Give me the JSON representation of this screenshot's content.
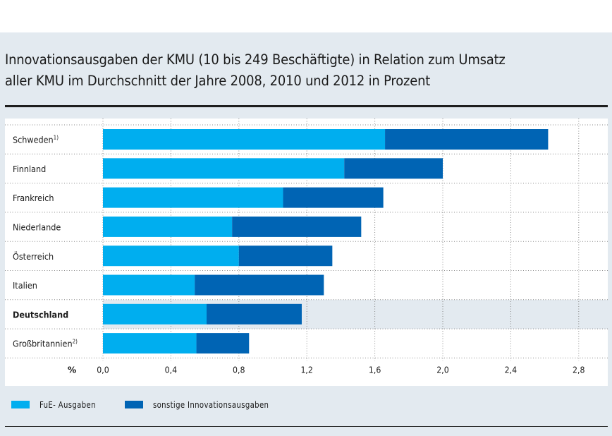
{
  "chart_data": {
    "type": "bar",
    "orientation": "horizontal",
    "stacked": true,
    "title": "Innovationsausgaben der KMU (10 bis 249 Beschäftigte) in Relation zum Umsatz aller KMU im Durchschnitt der Jahre 2008, 2010 und 2012 in Prozent",
    "title_lines": [
      "Innovationsausgaben der KMU (10 bis 249 Beschäftigte) in Relation zum Umsatz",
      "aller KMU im Durchschnitt der Jahre 2008, 2010 und 2012 in Prozent"
    ],
    "xlabel": "%",
    "ylabel": "",
    "xlim": [
      0,
      2.9
    ],
    "xticks": [
      0.0,
      0.4,
      0.8,
      1.2,
      1.6,
      2.0,
      2.4,
      2.8
    ],
    "xtick_labels": [
      "0,0",
      "0,4",
      "0,8",
      "1,2",
      "1,6",
      "2,0",
      "2,4",
      "2,8"
    ],
    "grid": true,
    "highlighted_category": "Deutschland",
    "categories": [
      {
        "label": "Schweden",
        "footnote": "1)"
      },
      {
        "label": "Finnland",
        "footnote": ""
      },
      {
        "label": "Frankreich",
        "footnote": ""
      },
      {
        "label": "Niederlande",
        "footnote": ""
      },
      {
        "label": "Österreich",
        "footnote": ""
      },
      {
        "label": "Italien",
        "footnote": ""
      },
      {
        "label": "Deutschland",
        "footnote": ""
      },
      {
        "label": "Großbritannien",
        "footnote": "2)"
      }
    ],
    "series": [
      {
        "name": "FuE-Ausgaben",
        "color": "#00aeef",
        "values": [
          1.66,
          1.42,
          1.06,
          0.76,
          0.8,
          0.54,
          0.61,
          0.55
        ]
      },
      {
        "name": "sonstige Innovationsausgaben",
        "color": "#0064b4",
        "values": [
          0.96,
          0.58,
          0.59,
          0.76,
          0.55,
          0.76,
          0.56,
          0.31
        ]
      }
    ],
    "totals": [
      2.62,
      2.0,
      1.65,
      1.52,
      1.35,
      1.3,
      1.17,
      0.86
    ],
    "legend_position": "bottom-left"
  },
  "legend": {
    "items": [
      {
        "label": "FuE- Ausgaben",
        "color": "#00aeef"
      },
      {
        "label": "sonstige Innovationsausgaben",
        "color": "#0064b4"
      }
    ]
  },
  "colors": {
    "background": "#e3eaf0",
    "panel": "#ffffff",
    "highlight_row": "#e3eaf0"
  }
}
